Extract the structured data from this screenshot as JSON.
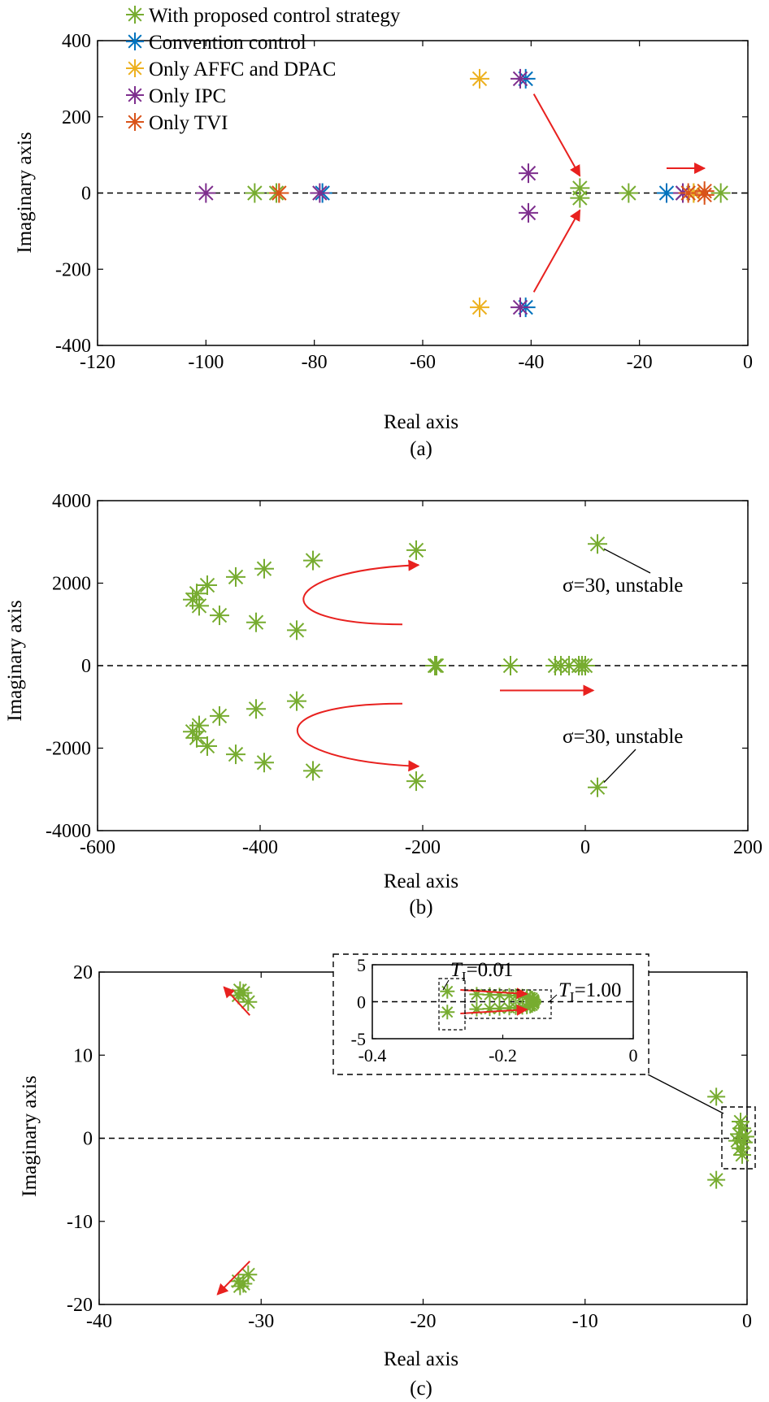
{
  "colors": {
    "green": "#77AC30",
    "blue": "#0072BD",
    "yellow": "#EDB120",
    "purple": "#7E2F8E",
    "orange": "#D95319",
    "arrow": "#E8211F",
    "axis": "#000000"
  },
  "chart_data": [
    {
      "type": "scatter",
      "caption": "(a)",
      "xlabel": "Real axis",
      "ylabel": "Imaginary axis",
      "xlim": [
        -120,
        0
      ],
      "ylim": [
        -400,
        400
      ],
      "xticks": [
        -120,
        -100,
        -80,
        -60,
        -40,
        -20,
        0
      ],
      "yticks": [
        -400,
        -200,
        0,
        200,
        400
      ],
      "xtick_labels": [
        "-120",
        "-100",
        "-80",
        "-60",
        "-40",
        "-20",
        "0"
      ],
      "ytick_labels": [
        "-400",
        "-200",
        "0",
        "200",
        "400"
      ],
      "zero_line": true,
      "legend_position": "top-left",
      "legend": [
        {
          "label": "With proposed control strategy",
          "color": "green"
        },
        {
          "label": "Convention control",
          "color": "blue"
        },
        {
          "label": "Only AFFC and DPAC",
          "color": "yellow"
        },
        {
          "label": "Only IPC",
          "color": "purple"
        },
        {
          "label": "Only TVI",
          "color": "orange"
        }
      ],
      "series": [
        {
          "name": "With proposed control strategy",
          "color": "green",
          "points": [
            [
              -91,
              0
            ],
            [
              -87,
              0
            ],
            [
              -31,
              13
            ],
            [
              -31,
              -13
            ],
            [
              -22,
              0
            ],
            [
              -10,
              0
            ],
            [
              -5,
              0
            ]
          ]
        },
        {
          "name": "Convention control",
          "color": "blue",
          "points": [
            [
              -78.5,
              0
            ],
            [
              -41,
              300
            ],
            [
              -41,
              -300
            ],
            [
              -15,
              0
            ],
            [
              -12,
              0
            ]
          ]
        },
        {
          "name": "Only AFFC and DPAC",
          "color": "yellow",
          "points": [
            [
              -86.5,
              0
            ],
            [
              -49.5,
              300
            ],
            [
              -49.5,
              -300
            ],
            [
              -10,
              0
            ]
          ]
        },
        {
          "name": "Only IPC",
          "color": "purple",
          "points": [
            [
              -100,
              0
            ],
            [
              -79,
              0
            ],
            [
              -42,
              300
            ],
            [
              -42,
              -300
            ],
            [
              -40.5,
              52
            ],
            [
              -40.5,
              -52
            ],
            [
              -12,
              0
            ]
          ]
        },
        {
          "name": "Only TVI",
          "color": "orange",
          "points": [
            [
              -86.5,
              0
            ],
            [
              -11,
              0
            ],
            [
              -8,
              5
            ],
            [
              -8,
              -5
            ]
          ]
        }
      ],
      "arrows": [
        {
          "from": [
            -39.5,
            260
          ],
          "to": [
            -31,
            45
          ]
        },
        {
          "from": [
            -39.5,
            -260
          ],
          "to": [
            -31,
            -45
          ]
        },
        {
          "from": [
            -15,
            65
          ],
          "to": [
            -8,
            65
          ]
        }
      ]
    },
    {
      "type": "scatter",
      "caption": "(b)",
      "xlabel": "Real axis",
      "ylabel": "Imaginary axis",
      "xlim": [
        -600,
        200
      ],
      "ylim": [
        -4000,
        4000
      ],
      "xticks": [
        -600,
        -400,
        -200,
        0,
        200
      ],
      "yticks": [
        -4000,
        -2000,
        0,
        2000,
        4000
      ],
      "xtick_labels": [
        "-600",
        "-400",
        "-200",
        "0",
        "200"
      ],
      "ytick_labels": [
        "-4000",
        "-2000",
        "0",
        "2000",
        "4000"
      ],
      "zero_line": true,
      "series": [
        {
          "color": "green",
          "points": [
            [
              -483,
              1600
            ],
            [
              -478,
              1750
            ],
            [
              -475,
              1450
            ],
            [
              -465,
              1950
            ],
            [
              -450,
              1220
            ],
            [
              -430,
              2150
            ],
            [
              -405,
              1050
            ],
            [
              -395,
              2350
            ],
            [
              -355,
              860
            ],
            [
              -335,
              2550
            ],
            [
              -208,
              2800
            ],
            [
              15,
              2950
            ],
            [
              -483,
              -1600
            ],
            [
              -478,
              -1750
            ],
            [
              -475,
              -1450
            ],
            [
              -465,
              -1950
            ],
            [
              -450,
              -1220
            ],
            [
              -430,
              -2150
            ],
            [
              -405,
              -1050
            ],
            [
              -395,
              -2350
            ],
            [
              -355,
              -860
            ],
            [
              -335,
              -2550
            ],
            [
              -208,
              -2800
            ],
            [
              15,
              -2950
            ],
            [
              -185,
              0
            ],
            [
              -183,
              0
            ],
            [
              -92,
              0
            ],
            [
              -37,
              0
            ],
            [
              -30,
              0
            ],
            [
              -20,
              0
            ],
            [
              -8,
              0
            ],
            [
              -4,
              0
            ],
            [
              0,
              0
            ]
          ]
        }
      ],
      "annotations": [
        {
          "text": "σ=30, unstable",
          "at": [
            15,
            2950
          ]
        },
        {
          "text": "σ=30, unstable",
          "at": [
            15,
            -2950
          ]
        }
      ],
      "arrows": [
        {
          "from": [
            -225,
            1000
          ],
          "to": [
            -205,
            2440
          ],
          "curve": "upper"
        },
        {
          "from": [
            -225,
            -920
          ],
          "to": [
            -205,
            -2440
          ],
          "curve": "lower"
        },
        {
          "from": [
            -105,
            -600
          ],
          "to": [
            10,
            -600
          ]
        }
      ]
    },
    {
      "type": "scatter",
      "caption": "(c)",
      "xlabel": "Real axis",
      "ylabel": "Imaginary axis",
      "xlim": [
        -40,
        0
      ],
      "ylim": [
        -20,
        20
      ],
      "xticks": [
        -40,
        -30,
        -20,
        -10,
        0
      ],
      "yticks": [
        -20,
        -10,
        0,
        10,
        20
      ],
      "xtick_labels": [
        "-40",
        "-30",
        "-20",
        "-10",
        "0"
      ],
      "ytick_labels": [
        "-20",
        "-10",
        "0",
        "10",
        "20"
      ],
      "zero_line": true,
      "series": [
        {
          "color": "green",
          "points": [
            [
              -31.3,
              17.8
            ],
            [
              -31.1,
              17.5
            ],
            [
              -31.4,
              17.2
            ],
            [
              -30.8,
              16.4
            ],
            [
              -31.3,
              -17.8
            ],
            [
              -31.1,
              -17.5
            ],
            [
              -31.4,
              -17.2
            ],
            [
              -30.8,
              -16.4
            ],
            [
              -1.9,
              5.0
            ],
            [
              -1.9,
              -5.0
            ],
            [
              -0.4,
              2.0
            ],
            [
              -0.3,
              1.2
            ],
            [
              -0.5,
              0.5
            ],
            [
              -0.2,
              -0.5
            ],
            [
              -0.4,
              -1.2
            ],
            [
              -0.3,
              -2.0
            ],
            [
              -0.1,
              0.2
            ],
            [
              -0.6,
              -0.3
            ]
          ]
        }
      ],
      "arrows": [
        {
          "from": [
            -30.7,
            14.8
          ],
          "to": [
            -32.3,
            18.2
          ]
        },
        {
          "from": [
            -30.7,
            -14.8
          ],
          "to": [
            -32.7,
            -18.8
          ]
        }
      ],
      "inset": {
        "xlim": [
          -0.4,
          0
        ],
        "ylim": [
          -5,
          5
        ],
        "xticks": [
          -0.4,
          -0.2,
          0
        ],
        "yticks": [
          -5,
          0,
          5
        ],
        "xtick_labels": [
          "-0.4",
          "-0.2",
          "0"
        ],
        "ytick_labels": [
          "-5",
          "0",
          "5"
        ],
        "annotations": [
          {
            "text": "T",
            "sub": "I",
            "value": "=0.01"
          },
          {
            "text": "T",
            "sub": "I",
            "value": "=1.00"
          }
        ],
        "series": [
          {
            "color": "green",
            "points": [
              [
                -0.285,
                1.4
              ],
              [
                -0.285,
                -1.4
              ],
              [
                -0.24,
                1.0
              ],
              [
                -0.22,
                0.95
              ],
              [
                -0.205,
                0.9
              ],
              [
                -0.19,
                0.85
              ],
              [
                -0.18,
                0.8
              ],
              [
                -0.17,
                0.75
              ],
              [
                -0.163,
                0.7
              ],
              [
                -0.158,
                0.6
              ],
              [
                -0.155,
                0.5
              ],
              [
                -0.153,
                0.3
              ],
              [
                -0.152,
                0.1
              ],
              [
                -0.24,
                -1.0
              ],
              [
                -0.22,
                -0.95
              ],
              [
                -0.205,
                -0.9
              ],
              [
                -0.19,
                -0.85
              ],
              [
                -0.18,
                -0.8
              ],
              [
                -0.17,
                -0.75
              ],
              [
                -0.163,
                -0.7
              ],
              [
                -0.158,
                -0.6
              ],
              [
                -0.155,
                -0.5
              ],
              [
                -0.153,
                -0.3
              ],
              [
                -0.152,
                -0.1
              ]
            ]
          }
        ],
        "arrows": [
          {
            "from": [
              -0.265,
              1.6
            ],
            "to": [
              -0.163,
              1.05
            ]
          },
          {
            "from": [
              -0.265,
              -1.6
            ],
            "to": [
              -0.163,
              -1.05
            ]
          }
        ]
      }
    }
  ]
}
